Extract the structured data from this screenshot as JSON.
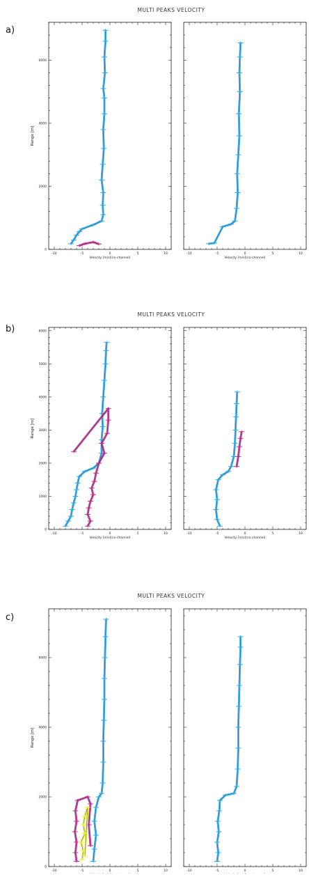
{
  "figure": {
    "colors": {
      "blue": "#2aa7e6",
      "magenta": "#c02a8a",
      "yellow": "#ecec3a",
      "dark": "#1a3a6a"
    }
  },
  "chart_data": [
    {
      "type": "scatter",
      "panel_label": "a)",
      "title": "MULTI PEAKS VELOCITY",
      "ylabel": "Range  [m]",
      "ylim": [
        0,
        7200
      ],
      "yticks": [
        0,
        2000,
        4000,
        6000
      ],
      "ytick_labels": [
        "0",
        "2000",
        "4000",
        "6000"
      ],
      "grid": false,
      "subplots": [
        {
          "xlabel": "Velocity [m/s](co-channel)",
          "xlim": [
            -11,
            11
          ],
          "xticks": [
            -10,
            -5,
            0,
            5,
            10
          ],
          "xtick_labels": [
            "-10",
            "-5",
            "0",
            "5",
            "10"
          ],
          "series": [
            {
              "color": "blue",
              "points": [
                [
                  -7.0,
                  180
                ],
                [
                  -6.5,
                  300
                ],
                [
                  -6.0,
                  450
                ],
                [
                  -5.5,
                  560
                ],
                [
                  -5.0,
                  650
                ],
                [
                  -3.0,
                  780
                ],
                [
                  -1.5,
                  900
                ],
                [
                  -1.2,
                  1100
                ],
                [
                  -1.3,
                  1400
                ],
                [
                  -1.2,
                  1800
                ],
                [
                  -1.5,
                  2200
                ],
                [
                  -1.3,
                  2700
                ],
                [
                  -1.1,
                  3200
                ],
                [
                  -1.2,
                  3800
                ],
                [
                  -1.0,
                  4300
                ],
                [
                  -1.0,
                  4800
                ],
                [
                  -1.2,
                  5100
                ],
                [
                  -0.9,
                  5600
                ],
                [
                  -1.0,
                  6100
                ],
                [
                  -0.8,
                  6600
                ],
                [
                  -0.8,
                  6950
                ]
              ]
            },
            {
              "color": "magenta",
              "points": [
                [
                  -5.5,
                  120
                ],
                [
                  -4.5,
                  180
                ],
                [
                  -3.0,
                  230
                ],
                [
                  -2.0,
                  170
                ]
              ]
            }
          ]
        },
        {
          "xlabel": "Velocity [m/s](co-channel)",
          "xlim": [
            -11,
            11
          ],
          "xticks": [
            -10,
            -5,
            0,
            5,
            10
          ],
          "xtick_labels": [
            "-10",
            "-5",
            "0",
            "5",
            "10"
          ],
          "series": [
            {
              "color": "blue",
              "points": [
                [
                  -6.5,
                  180
                ],
                [
                  -5.5,
                  200
                ],
                [
                  -4.0,
                  720
                ],
                [
                  -2.5,
                  800
                ],
                [
                  -1.8,
                  900
                ],
                [
                  -1.5,
                  1300
                ],
                [
                  -1.3,
                  1800
                ],
                [
                  -1.4,
                  2400
                ],
                [
                  -1.2,
                  3000
                ],
                [
                  -1.0,
                  3600
                ],
                [
                  -1.1,
                  4300
                ],
                [
                  -0.9,
                  5000
                ],
                [
                  -1.0,
                  5600
                ],
                [
                  -0.9,
                  6100
                ],
                [
                  -0.8,
                  6550
                ]
              ]
            }
          ]
        }
      ]
    },
    {
      "type": "scatter",
      "panel_label": "b)",
      "title": "MULTI PEAKS VELOCITY",
      "ylabel": "Range  [m]",
      "ylim": [
        0,
        6100
      ],
      "yticks": [
        0,
        1000,
        2000,
        3000,
        4000,
        5000,
        6000
      ],
      "ytick_labels": [
        "0",
        "1000",
        "2000",
        "3000",
        "4000",
        "5000",
        "6000"
      ],
      "grid": false,
      "subplots": [
        {
          "xlabel": "Velocity [m/s](co-channel)",
          "xlim": [
            -11,
            11
          ],
          "xticks": [
            -10,
            -5,
            0,
            5,
            10
          ],
          "xtick_labels": [
            "-10",
            "-5",
            "0",
            "5",
            "10"
          ],
          "series": [
            {
              "color": "blue",
              "points": [
                [
                  -8.0,
                  100
                ],
                [
                  -7.5,
                  250
                ],
                [
                  -7.0,
                  400
                ],
                [
                  -6.8,
                  600
                ],
                [
                  -6.5,
                  800
                ],
                [
                  -6.2,
                  1000
                ],
                [
                  -6.0,
                  1200
                ],
                [
                  -5.8,
                  1400
                ],
                [
                  -5.5,
                  1600
                ],
                [
                  -4.5,
                  1750
                ],
                [
                  -3.0,
                  1850
                ],
                [
                  -2.0,
                  2000
                ],
                [
                  -1.5,
                  2300
                ],
                [
                  -1.5,
                  2700
                ],
                [
                  -1.3,
                  3100
                ],
                [
                  -1.4,
                  3500
                ],
                [
                  -1.2,
                  4000
                ],
                [
                  -1.0,
                  4500
                ],
                [
                  -0.8,
                  5000
                ],
                [
                  -0.7,
                  5400
                ],
                [
                  -0.6,
                  5650
                ]
              ]
            },
            {
              "color": "magenta",
              "points": [
                [
                  -4.0,
                  100
                ],
                [
                  -3.5,
                  250
                ],
                [
                  -4.0,
                  450
                ],
                [
                  -3.8,
                  650
                ],
                [
                  -3.5,
                  850
                ],
                [
                  -3.0,
                  1050
                ],
                [
                  -3.3,
                  1250
                ],
                [
                  -2.8,
                  1450
                ],
                [
                  -2.5,
                  1700
                ],
                [
                  -2.0,
                  2000
                ],
                [
                  -1.0,
                  2300
                ],
                [
                  -1.5,
                  2600
                ],
                [
                  -0.5,
                  2900
                ],
                [
                  -0.3,
                  3300
                ],
                [
                  -0.3,
                  3650
                ],
                [
                  -6.5,
                  2350
                ]
              ]
            }
          ]
        },
        {
          "xlabel": "Velocity [m/s](co-channel)",
          "xlim": [
            -11,
            11
          ],
          "xticks": [
            -10,
            -5,
            0,
            5,
            10
          ],
          "xtick_labels": [
            "-10",
            "-5",
            "0",
            "5",
            "10"
          ],
          "series": [
            {
              "color": "blue",
              "points": [
                [
                  -4.5,
                  100
                ],
                [
                  -5.0,
                  300
                ],
                [
                  -5.2,
                  600
                ],
                [
                  -5.0,
                  900
                ],
                [
                  -5.2,
                  1200
                ],
                [
                  -4.8,
                  1500
                ],
                [
                  -4.0,
                  1650
                ],
                [
                  -3.0,
                  1750
                ],
                [
                  -2.5,
                  1900
                ],
                [
                  -2.0,
                  2200
                ],
                [
                  -1.8,
                  2600
                ],
                [
                  -1.7,
                  3000
                ],
                [
                  -1.6,
                  3400
                ],
                [
                  -1.5,
                  3800
                ],
                [
                  -1.4,
                  4150
                ]
              ]
            },
            {
              "color": "magenta",
              "points": [
                [
                  -1.5,
                  1900
                ],
                [
                  -1.2,
                  2200
                ],
                [
                  -1.0,
                  2500
                ],
                [
                  -0.8,
                  2750
                ],
                [
                  -0.6,
                  2950
                ]
              ]
            }
          ]
        }
      ]
    },
    {
      "type": "scatter",
      "panel_label": "c)",
      "title": "MULTI PEAKS VELOCITY",
      "ylabel": "Range  [m]",
      "ylim": [
        0,
        7400
      ],
      "yticks": [
        0,
        2000,
        4000,
        6000
      ],
      "ytick_labels": [
        "0",
        "2000",
        "4000",
        "6000"
      ],
      "grid": false,
      "subplots": [
        {
          "xlabel": "Velocity [m/s](co-channel)",
          "xlim": [
            -11,
            11
          ],
          "xticks": [
            -10,
            -5,
            0,
            5,
            10
          ],
          "xtick_labels": [
            "-10",
            "-5",
            "0",
            "5",
            "10"
          ],
          "series": [
            {
              "color": "magenta",
              "points": [
                [
                  -6.0,
                  150
                ],
                [
                  -6.2,
                  400
                ],
                [
                  -6.0,
                  700
                ],
                [
                  -6.3,
                  1000
                ],
                [
                  -6.0,
                  1300
                ],
                [
                  -6.2,
                  1600
                ],
                [
                  -5.8,
                  1900
                ],
                [
                  -4.0,
                  2000
                ],
                [
                  -3.5,
                  1800
                ],
                [
                  -3.8,
                  1200
                ],
                [
                  -3.5,
                  600
                ]
              ]
            },
            {
              "color": "yellow",
              "points": [
                [
                  -5.0,
                  200
                ],
                [
                  -4.8,
                  450
                ],
                [
                  -5.2,
                  700
                ],
                [
                  -4.5,
                  950
                ],
                [
                  -4.8,
                  1200
                ],
                [
                  -4.5,
                  1450
                ],
                [
                  -4.0,
                  1700
                ],
                [
                  -4.5,
                  300
                ]
              ]
            },
            {
              "color": "blue",
              "points": [
                [
                  -3.0,
                  150
                ],
                [
                  -2.8,
                  500
                ],
                [
                  -2.5,
                  900
                ],
                [
                  -2.8,
                  1300
                ],
                [
                  -2.5,
                  1700
                ],
                [
                  -2.0,
                  2000
                ],
                [
                  -1.5,
                  2100
                ],
                [
                  -1.3,
                  2400
                ],
                [
                  -1.2,
                  3000
                ],
                [
                  -1.2,
                  3600
                ],
                [
                  -1.1,
                  4200
                ],
                [
                  -1.0,
                  4800
                ],
                [
                  -1.0,
                  5400
                ],
                [
                  -0.9,
                  6000
                ],
                [
                  -0.8,
                  6600
                ],
                [
                  -0.7,
                  7100
                ]
              ]
            }
          ]
        },
        {
          "xlabel": "Velocity [m/s](co-channel)",
          "xlim": [
            -11,
            11
          ],
          "xticks": [
            -10,
            -5,
            0,
            5,
            10
          ],
          "xtick_labels": [
            "-10",
            "-5",
            "0",
            "5",
            "10"
          ],
          "series": [
            {
              "color": "blue",
              "points": [
                [
                  -5.0,
                  150
                ],
                [
                  -4.8,
                  400
                ],
                [
                  -5.0,
                  700
                ],
                [
                  -4.7,
                  1000
                ],
                [
                  -4.9,
                  1300
                ],
                [
                  -4.6,
                  1600
                ],
                [
                  -4.5,
                  1900
                ],
                [
                  -3.5,
                  2050
                ],
                [
                  -2.0,
                  2100
                ],
                [
                  -1.5,
                  2300
                ],
                [
                  -1.3,
                  2800
                ],
                [
                  -1.2,
                  3400
                ],
                [
                  -1.2,
                  4000
                ],
                [
                  -1.1,
                  4600
                ],
                [
                  -1.0,
                  5200
                ],
                [
                  -0.9,
                  5800
                ],
                [
                  -0.8,
                  6300
                ],
                [
                  -0.8,
                  6600
                ]
              ]
            }
          ]
        }
      ]
    }
  ]
}
